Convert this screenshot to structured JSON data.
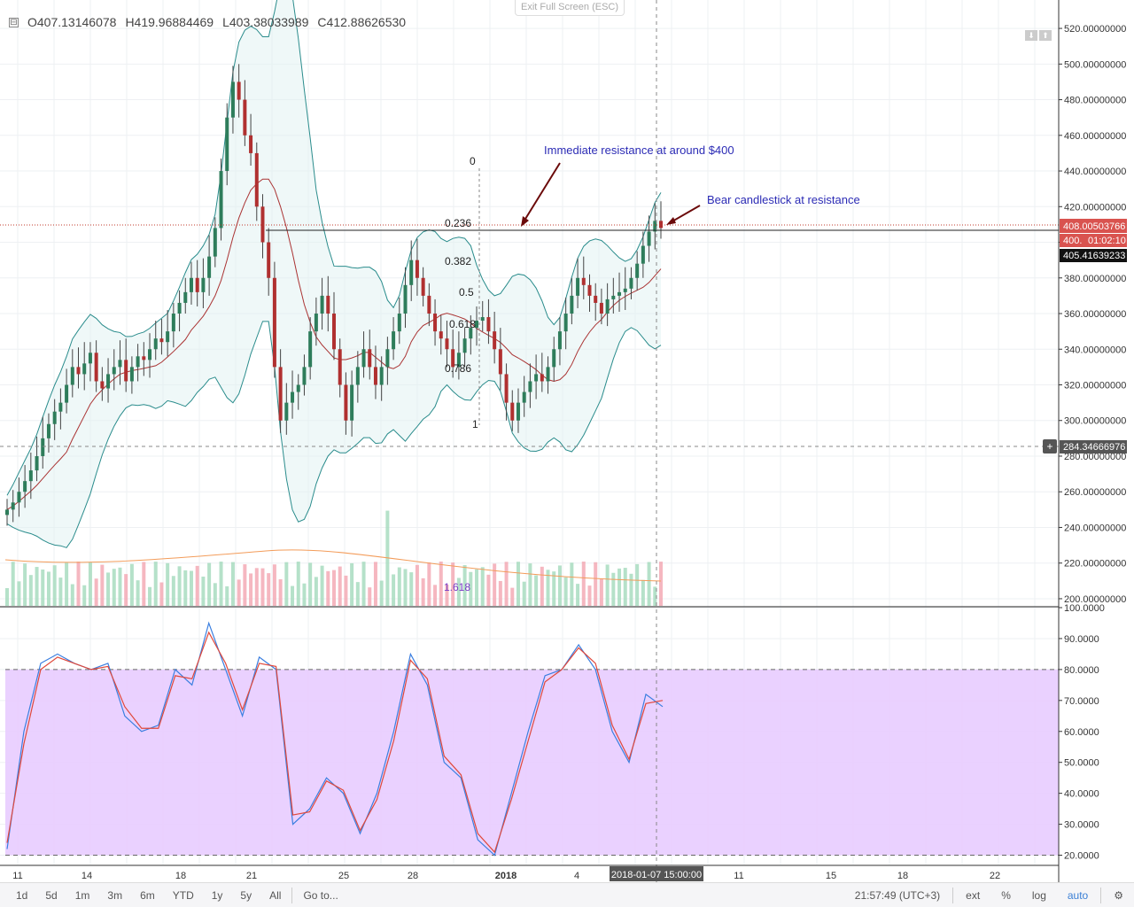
{
  "exit_full_screen": "Exit Full Screen (ESC)",
  "ohlc": {
    "open": "O407.13146078",
    "high": "H419.96884469",
    "low": "L403.38033989",
    "close": "C412.88626530"
  },
  "price_labels": {
    "last_price": "408.00503766",
    "countdown": "01:02:10",
    "line_price": "405.41639233",
    "crosshair_price": "284.34666976"
  },
  "crosshair_time": "2018-01-07 15:00:00",
  "annotations": {
    "resistance": "Immediate resistance at around $400",
    "bear": "Bear candlestick at resistance"
  },
  "fib_labels": [
    "0",
    "0.236",
    "0.382",
    "0.5",
    "0.618",
    "0.786",
    "1",
    "1.618"
  ],
  "bottom_bar": {
    "ranges": [
      "1d",
      "5d",
      "1m",
      "3m",
      "6m",
      "YTD",
      "1y",
      "5y",
      "All"
    ],
    "goto": "Go to...",
    "clock": "21:57:49 (UTC+3)",
    "ext": "ext",
    "percent": "%",
    "log": "log",
    "auto": "auto",
    "gear": "⚙"
  },
  "chart_data": [
    {
      "type": "candlestick",
      "title": "",
      "y_ticks": [
        "520.00000000",
        "500.00000000",
        "480.00000000",
        "460.00000000",
        "440.00000000",
        "420.00000000",
        "400.00000000",
        "380.00000000",
        "360.00000000",
        "340.00000000",
        "320.00000000",
        "300.00000000",
        "280.00000000",
        "260.00000000",
        "240.00000000",
        "220.00000000",
        "200.00000000"
      ],
      "ylim": [
        196,
        526
      ],
      "x_ticks": [
        "11",
        "14",
        "18",
        "21",
        "25",
        "28",
        "2018",
        "4",
        "8",
        "11",
        "15",
        "18",
        "22"
      ],
      "overlays": [
        "Bollinger Bands",
        "moving average",
        "volume",
        "Fibonacci retracement"
      ],
      "close_values": [
        250,
        254,
        260,
        266,
        272,
        280,
        290,
        298,
        305,
        310,
        320,
        330,
        326,
        332,
        338,
        322,
        318,
        326,
        330,
        334,
        322,
        330,
        336,
        334,
        340,
        346,
        344,
        350,
        360,
        366,
        372,
        380,
        372,
        380,
        392,
        408,
        440,
        470,
        490,
        480,
        460,
        450,
        420,
        400,
        380,
        330,
        300,
        310,
        316,
        320,
        330,
        350,
        360,
        370,
        360,
        340,
        320,
        300,
        320,
        330,
        340,
        330,
        320,
        330,
        340,
        350,
        360,
        376,
        390,
        380,
        370,
        360,
        350,
        346,
        340,
        330,
        338,
        346,
        352,
        356,
        358,
        350,
        340,
        326,
        310,
        300,
        310,
        316,
        322,
        326,
        322,
        330,
        340,
        350,
        360,
        370,
        380,
        376,
        370,
        366,
        360,
        368,
        370,
        372,
        374,
        380,
        388,
        398,
        406,
        412,
        408
      ]
    },
    {
      "type": "line",
      "title": "",
      "y_ticks": [
        "100.0000",
        "90.0000",
        "80.0000",
        "70.0000",
        "60.0000",
        "50.0000",
        "40.0000",
        "30.0000",
        "20.0000"
      ],
      "ylim": [
        17,
        100
      ],
      "band": [
        20,
        80
      ],
      "series": [
        {
          "values": [
            22,
            60,
            82,
            85,
            82,
            80,
            82,
            65,
            60,
            62,
            80,
            75,
            95,
            80,
            65,
            84,
            80,
            30,
            35,
            45,
            40,
            27,
            40,
            60,
            85,
            75,
            50,
            45,
            25,
            20,
            40,
            60,
            78,
            80,
            88,
            80,
            60,
            50,
            72,
            68
          ]
        },
        {
          "values": [
            24,
            56,
            80,
            84,
            82,
            80,
            81,
            68,
            61,
            61,
            78,
            77,
            92,
            82,
            67,
            82,
            81,
            33,
            34,
            44,
            41,
            28,
            38,
            57,
            83,
            77,
            52,
            46,
            27,
            21,
            38,
            57,
            76,
            80,
            87,
            82,
            62,
            51,
            69,
            70
          ]
        }
      ]
    }
  ]
}
